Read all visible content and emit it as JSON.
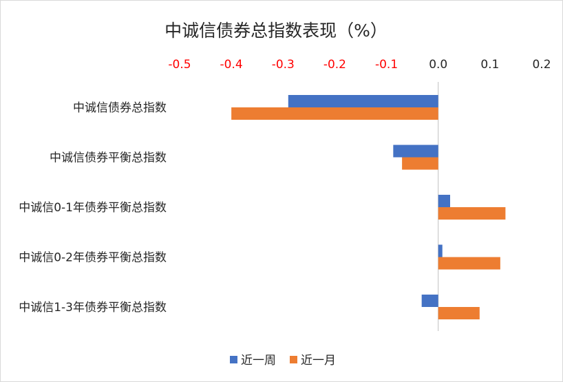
{
  "chart_data": {
    "type": "bar",
    "orientation": "horizontal",
    "title": "中诚信债券总指数表现（%）",
    "categories": [
      "中诚信债券总指数",
      "中诚信债券平衡总指数",
      "中诚信0-1年债券平衡总指数",
      "中诚信0-2年债券平衡总指数",
      "中诚信1-3年债券平衡总指数"
    ],
    "series": [
      {
        "name": "近一周",
        "color": "#4472C4",
        "values": [
          -0.29,
          -0.087,
          0.023,
          0.008,
          -0.032
        ]
      },
      {
        "name": "近一月",
        "color": "#ED7D31",
        "values": [
          -0.4,
          -0.07,
          0.13,
          0.12,
          0.08
        ]
      }
    ],
    "xlim": [
      -0.5,
      0.2
    ],
    "x_ticks": [
      "-0.5",
      "-0.4",
      "-0.3",
      "-0.2",
      "-0.1",
      "0.0",
      "0.1",
      "0.2"
    ],
    "x_tick_values": [
      -0.5,
      -0.4,
      -0.3,
      -0.2,
      -0.1,
      0.0,
      0.1,
      0.2
    ],
    "axis_position": "top",
    "negative_tick_color": "#FF0000",
    "positive_tick_color": "#262626",
    "grid": false,
    "legend_position": "bottom"
  }
}
